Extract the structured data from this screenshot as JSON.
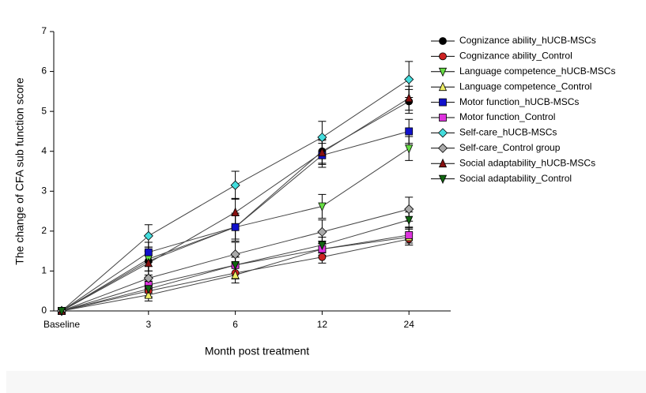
{
  "chart_data": {
    "type": "line",
    "xlabel": "Month post treatment",
    "ylabel": "The change of CFA sub function score",
    "categories": [
      "Baseline",
      "3",
      "6",
      "12",
      "24"
    ],
    "ylim": [
      0,
      7
    ],
    "yticks": [
      0,
      1,
      2,
      3,
      4,
      5,
      6,
      7
    ],
    "series": [
      {
        "name": "Cognizance ability_hUCB-MSCs",
        "color": "#000000",
        "marker": "circle",
        "values": [
          0,
          1.25,
          2.1,
          4.0,
          5.25
        ],
        "errors": [
          0,
          0.25,
          0.35,
          0.3,
          0.3
        ]
      },
      {
        "name": "Cognizance ability_Control",
        "color": "#cc2222",
        "marker": "circle",
        "values": [
          0,
          0.5,
          0.95,
          1.35,
          1.8
        ],
        "errors": [
          0,
          0.15,
          0.15,
          0.15,
          0.15
        ]
      },
      {
        "name": "Language competence_hUCB-MSCs",
        "color": "#66dd44",
        "marker": "triangle-down",
        "values": [
          0,
          1.3,
          2.1,
          2.62,
          4.07
        ],
        "errors": [
          0,
          0.3,
          0.3,
          0.3,
          0.3
        ]
      },
      {
        "name": "Language competence_Control",
        "color": "#eeee66",
        "marker": "triangle-up",
        "values": [
          0,
          0.4,
          0.9,
          1.55,
          1.85
        ],
        "errors": [
          0,
          0.15,
          0.2,
          0.15,
          0.2
        ]
      },
      {
        "name": "Motor function_hUCB-MSCs",
        "color": "#1111cc",
        "marker": "square",
        "values": [
          0,
          1.47,
          2.1,
          3.9,
          4.5
        ],
        "errors": [
          0,
          0.25,
          0.3,
          0.3,
          0.3
        ]
      },
      {
        "name": "Motor function_Control",
        "color": "#dd33dd",
        "marker": "square",
        "values": [
          0,
          0.65,
          1.15,
          1.55,
          1.9
        ],
        "errors": [
          0,
          0.2,
          0.2,
          0.2,
          0.2
        ]
      },
      {
        "name": "Self-care_hUCB-MSCs",
        "color": "#44dddd",
        "marker": "diamond",
        "values": [
          0,
          1.88,
          3.15,
          4.35,
          5.8
        ],
        "errors": [
          0,
          0.28,
          0.35,
          0.4,
          0.45
        ]
      },
      {
        "name": "Self-care_Control group",
        "color": "#aaaaaa",
        "marker": "diamond",
        "values": [
          0,
          0.82,
          1.42,
          1.98,
          2.55
        ],
        "errors": [
          0,
          0.3,
          0.3,
          0.3,
          0.3
        ]
      },
      {
        "name": "Social adaptability_hUCB-MSCs",
        "color": "#881111",
        "marker": "triangle-up",
        "values": [
          0,
          1.2,
          2.47,
          3.97,
          5.33
        ],
        "errors": [
          0,
          0.3,
          0.35,
          0.3,
          0.3
        ]
      },
      {
        "name": "Social adaptability_Control",
        "color": "#116611",
        "marker": "triangle-down",
        "values": [
          0,
          0.55,
          1.15,
          1.65,
          2.28
        ],
        "errors": [
          0,
          0.2,
          0.2,
          0.2,
          0.2
        ]
      }
    ]
  }
}
